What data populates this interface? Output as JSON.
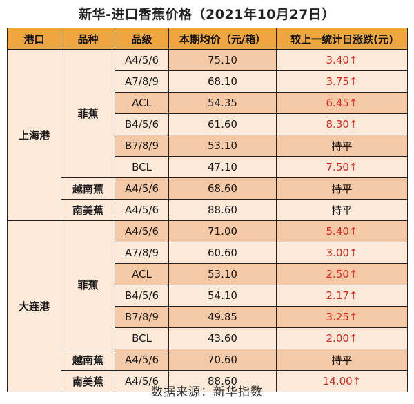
{
  "title": "新华-进口香蕉价格（2021年10月27日）",
  "headers": {
    "port": "港口",
    "variety": "品种",
    "grade": "品级",
    "price": "本期均价（元/箱）",
    "change": "较上一统计日涨跌(元)"
  },
  "ports": {
    "shanghai": "上海港",
    "dalian": "大连港"
  },
  "varieties": {
    "shanghai_phil": "菲蕉",
    "shanghai_viet": "越南蕉",
    "shanghai_sa": "南美蕉",
    "dalian_phil": "菲蕉",
    "dalian_viet": "越南蕉",
    "dalian_sa": "南美蕉"
  },
  "rows": [
    {
      "grade": "A4/5/6",
      "price": "75.10",
      "change": "3.40↑",
      "trend": "up"
    },
    {
      "grade": "A7/8/9",
      "price": "68.10",
      "change": "3.75↑",
      "trend": "up"
    },
    {
      "grade": "ACL",
      "price": "54.35",
      "change": "6.45↑",
      "trend": "up"
    },
    {
      "grade": "B4/5/6",
      "price": "61.60",
      "change": "8.30↑",
      "trend": "up"
    },
    {
      "grade": "B7/8/9",
      "price": "53.10",
      "change": "持平",
      "trend": "flat"
    },
    {
      "grade": "BCL",
      "price": "47.10",
      "change": "7.50↑",
      "trend": "up"
    },
    {
      "grade": "A4/5/6",
      "price": "68.60",
      "change": "持平",
      "trend": "flat"
    },
    {
      "grade": "A4/5/6",
      "price": "88.60",
      "change": "持平",
      "trend": "flat"
    },
    {
      "grade": "A4/5/6",
      "price": "71.00",
      "change": "5.40↑",
      "trend": "up"
    },
    {
      "grade": "A7/8/9",
      "price": "60.60",
      "change": "3.00↑",
      "trend": "up"
    },
    {
      "grade": "ACL",
      "price": "53.10",
      "change": "2.50↑",
      "trend": "up"
    },
    {
      "grade": "B4/5/6",
      "price": "54.10",
      "change": "2.17↑",
      "trend": "up"
    },
    {
      "grade": "B7/8/9",
      "price": "49.85",
      "change": "3.25↑",
      "trend": "up"
    },
    {
      "grade": "BCL",
      "price": "43.60",
      "change": "2.00↑",
      "trend": "up"
    },
    {
      "grade": "A4/5/6",
      "price": "70.60",
      "change": "持平",
      "trend": "flat"
    },
    {
      "grade": "A4/5/6",
      "price": "88.60",
      "change": "14.00↑",
      "trend": "up"
    }
  ],
  "source": "数据来源：新华指数",
  "colors": {
    "header": "#f0a63e",
    "row_light": "#fde9d8",
    "row_dark": "#f6c9a6",
    "up": "#d4261f"
  }
}
